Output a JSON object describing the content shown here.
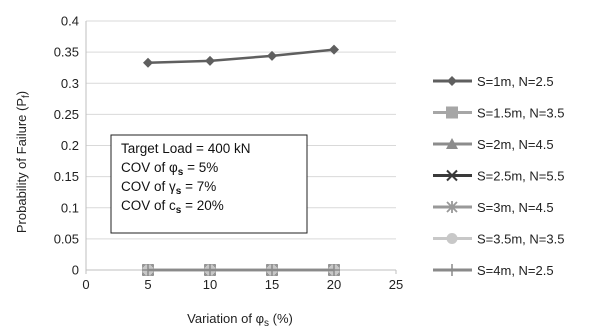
{
  "chart_data": {
    "type": "line",
    "xlabel": "Variation of φ",
    "xlabel_sub": "s",
    "xlabel_unit": " (%)",
    "ylabel": "Probability of Failure (P",
    "ylabel_sub": "f",
    "ylabel_end": ")",
    "xlim": [
      0,
      25
    ],
    "ylim": [
      0,
      0.4
    ],
    "x_ticks": [
      "0",
      "5",
      "10",
      "15",
      "20",
      "25"
    ],
    "y_ticks": [
      "0",
      "0.05",
      "0.1",
      "0.15",
      "0.2",
      "0.25",
      "0.3",
      "0.35",
      "0.4"
    ],
    "grid": "horizontal",
    "legend_position": "right",
    "x": [
      5,
      10,
      15,
      20
    ],
    "series": [
      {
        "name": "S=1m, N=2.5",
        "values": [
          0.333,
          0.336,
          0.344,
          0.354
        ],
        "color": "#5f5f5f",
        "marker": "diamond"
      },
      {
        "name": "S=1.5m, N=3.5",
        "values": [
          0,
          0,
          0,
          0
        ],
        "color": "#a6a6a6",
        "marker": "square"
      },
      {
        "name": "S=2m, N=4.5",
        "values": [
          0,
          0,
          0,
          0
        ],
        "color": "#8c8c8c",
        "marker": "triangle"
      },
      {
        "name": "S=2.5m, N=5.5",
        "values": [
          0,
          0,
          0,
          0
        ],
        "color": "#3a3a3a",
        "marker": "x"
      },
      {
        "name": "S=3m, N=4.5",
        "values": [
          0,
          0,
          0,
          0
        ],
        "color": "#999999",
        "marker": "star"
      },
      {
        "name": "S=3.5m, N=3.5",
        "values": [
          0,
          0,
          0,
          0
        ],
        "color": "#c8c8c8",
        "marker": "circle"
      },
      {
        "name": "S=4m, N=2.5",
        "values": [
          0,
          0,
          0,
          0
        ],
        "color": "#8a8a8a",
        "marker": "plus"
      }
    ],
    "annotation": {
      "line1": "Target Load = 400 kN",
      "line2_prefix": "COV of φ",
      "line2_sub": "s",
      "line2_suffix": " = 5%",
      "line3_prefix": "COV of γ",
      "line3_sub": "s",
      "line3_suffix": " = 7%",
      "line4_prefix": "COV of c",
      "line4_sub": "s",
      "line4_suffix": " = 20%"
    }
  }
}
